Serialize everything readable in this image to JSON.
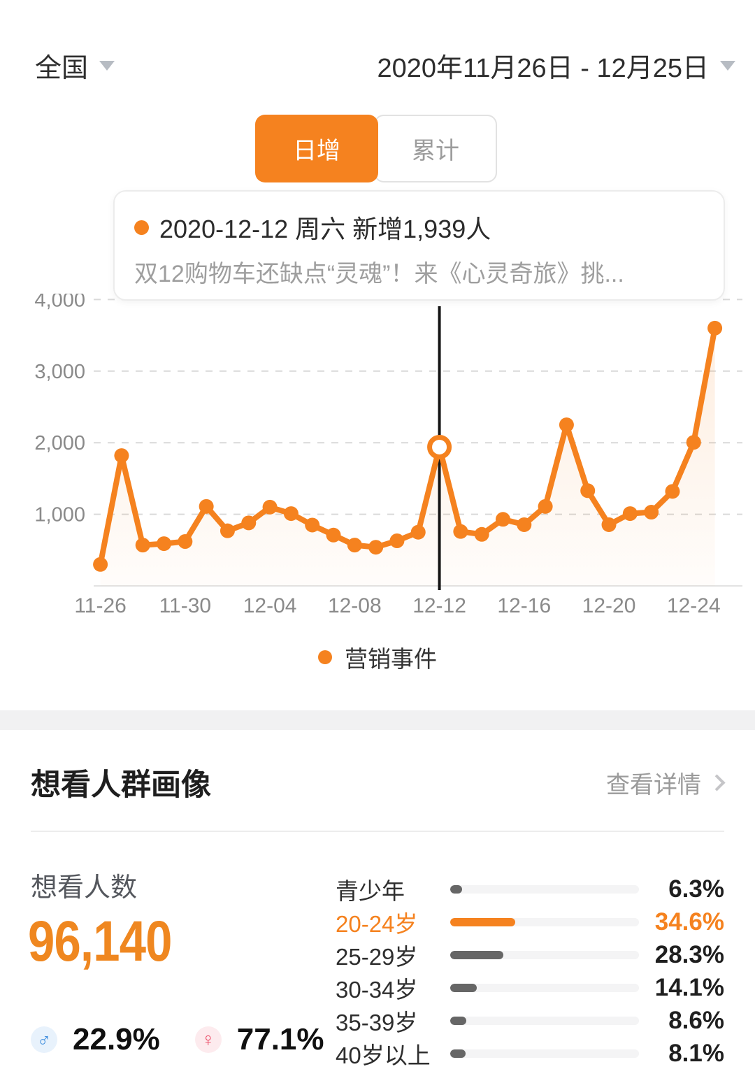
{
  "header": {
    "region": "全国",
    "date_range": "2020年11月26日 - 12月25日"
  },
  "tabs": [
    {
      "label": "日增",
      "active": true
    },
    {
      "label": "累计",
      "active": false
    }
  ],
  "tooltip": {
    "title": "2020-12-12 周六 新增1,939人",
    "subtitle": "双12购物车还缺点“灵魂”！来《心灵奇旅》挑..."
  },
  "legend": {
    "label": "营销事件"
  },
  "colors": {
    "accent": "#F5821F",
    "number_orange": "#EF8720",
    "male_blue": "#3A8BDD",
    "female_red": "#EC4B66",
    "bar_gray": "#666666",
    "event_line_black": "#151515"
  },
  "chart_data": {
    "type": "line",
    "x": [
      "11-26",
      "11-27",
      "11-28",
      "11-29",
      "11-30",
      "12-01",
      "12-02",
      "12-03",
      "12-04",
      "12-05",
      "12-06",
      "12-07",
      "12-08",
      "12-09",
      "12-10",
      "12-11",
      "12-12",
      "12-13",
      "12-14",
      "12-15",
      "12-16",
      "12-17",
      "12-18",
      "12-19",
      "12-20",
      "12-21",
      "12-22",
      "12-23",
      "12-24",
      "12-25"
    ],
    "values": [
      300,
      1820,
      570,
      590,
      620,
      1110,
      770,
      880,
      1100,
      1010,
      850,
      710,
      570,
      540,
      630,
      750,
      1939,
      760,
      720,
      930,
      855,
      1110,
      2250,
      1330,
      855,
      1010,
      1030,
      1320,
      2005,
      3600
    ],
    "highlight": {
      "index": 16,
      "date": "2020-12-12",
      "value": 1939
    },
    "ylim": [
      0,
      4000
    ],
    "y_ticks": [
      1000,
      2000,
      3000,
      4000
    ],
    "y_tick_labels": [
      "1,000",
      "2,000",
      "3,000",
      "4,000"
    ],
    "x_tick_labels": [
      "11-26",
      "11-30",
      "12-04",
      "12-08",
      "12-12",
      "12-16",
      "12-20",
      "12-24"
    ],
    "x_tick_every": 4,
    "grid": "dashed-horizontal",
    "legend": [
      "营销事件"
    ]
  },
  "profile": {
    "title": "想看人群画像",
    "view_details": "查看详情",
    "want_count_label": "想看人数",
    "want_count": "96,140",
    "male_symbol": "♂",
    "female_symbol": "♀",
    "male_percent": "22.9%",
    "female_percent": "77.1%",
    "age_rows": [
      {
        "label": "青少年",
        "value": 6.3,
        "display": "6.3%",
        "highlight": false
      },
      {
        "label": "20-24岁",
        "value": 34.6,
        "display": "34.6%",
        "highlight": true
      },
      {
        "label": "25-29岁",
        "value": 28.3,
        "display": "28.3%",
        "highlight": false
      },
      {
        "label": "30-34岁",
        "value": 14.1,
        "display": "14.1%",
        "highlight": false
      },
      {
        "label": "35-39岁",
        "value": 8.6,
        "display": "8.6%",
        "highlight": false
      },
      {
        "label": "40岁以上",
        "value": 8.1,
        "display": "8.1%",
        "highlight": false
      }
    ]
  }
}
